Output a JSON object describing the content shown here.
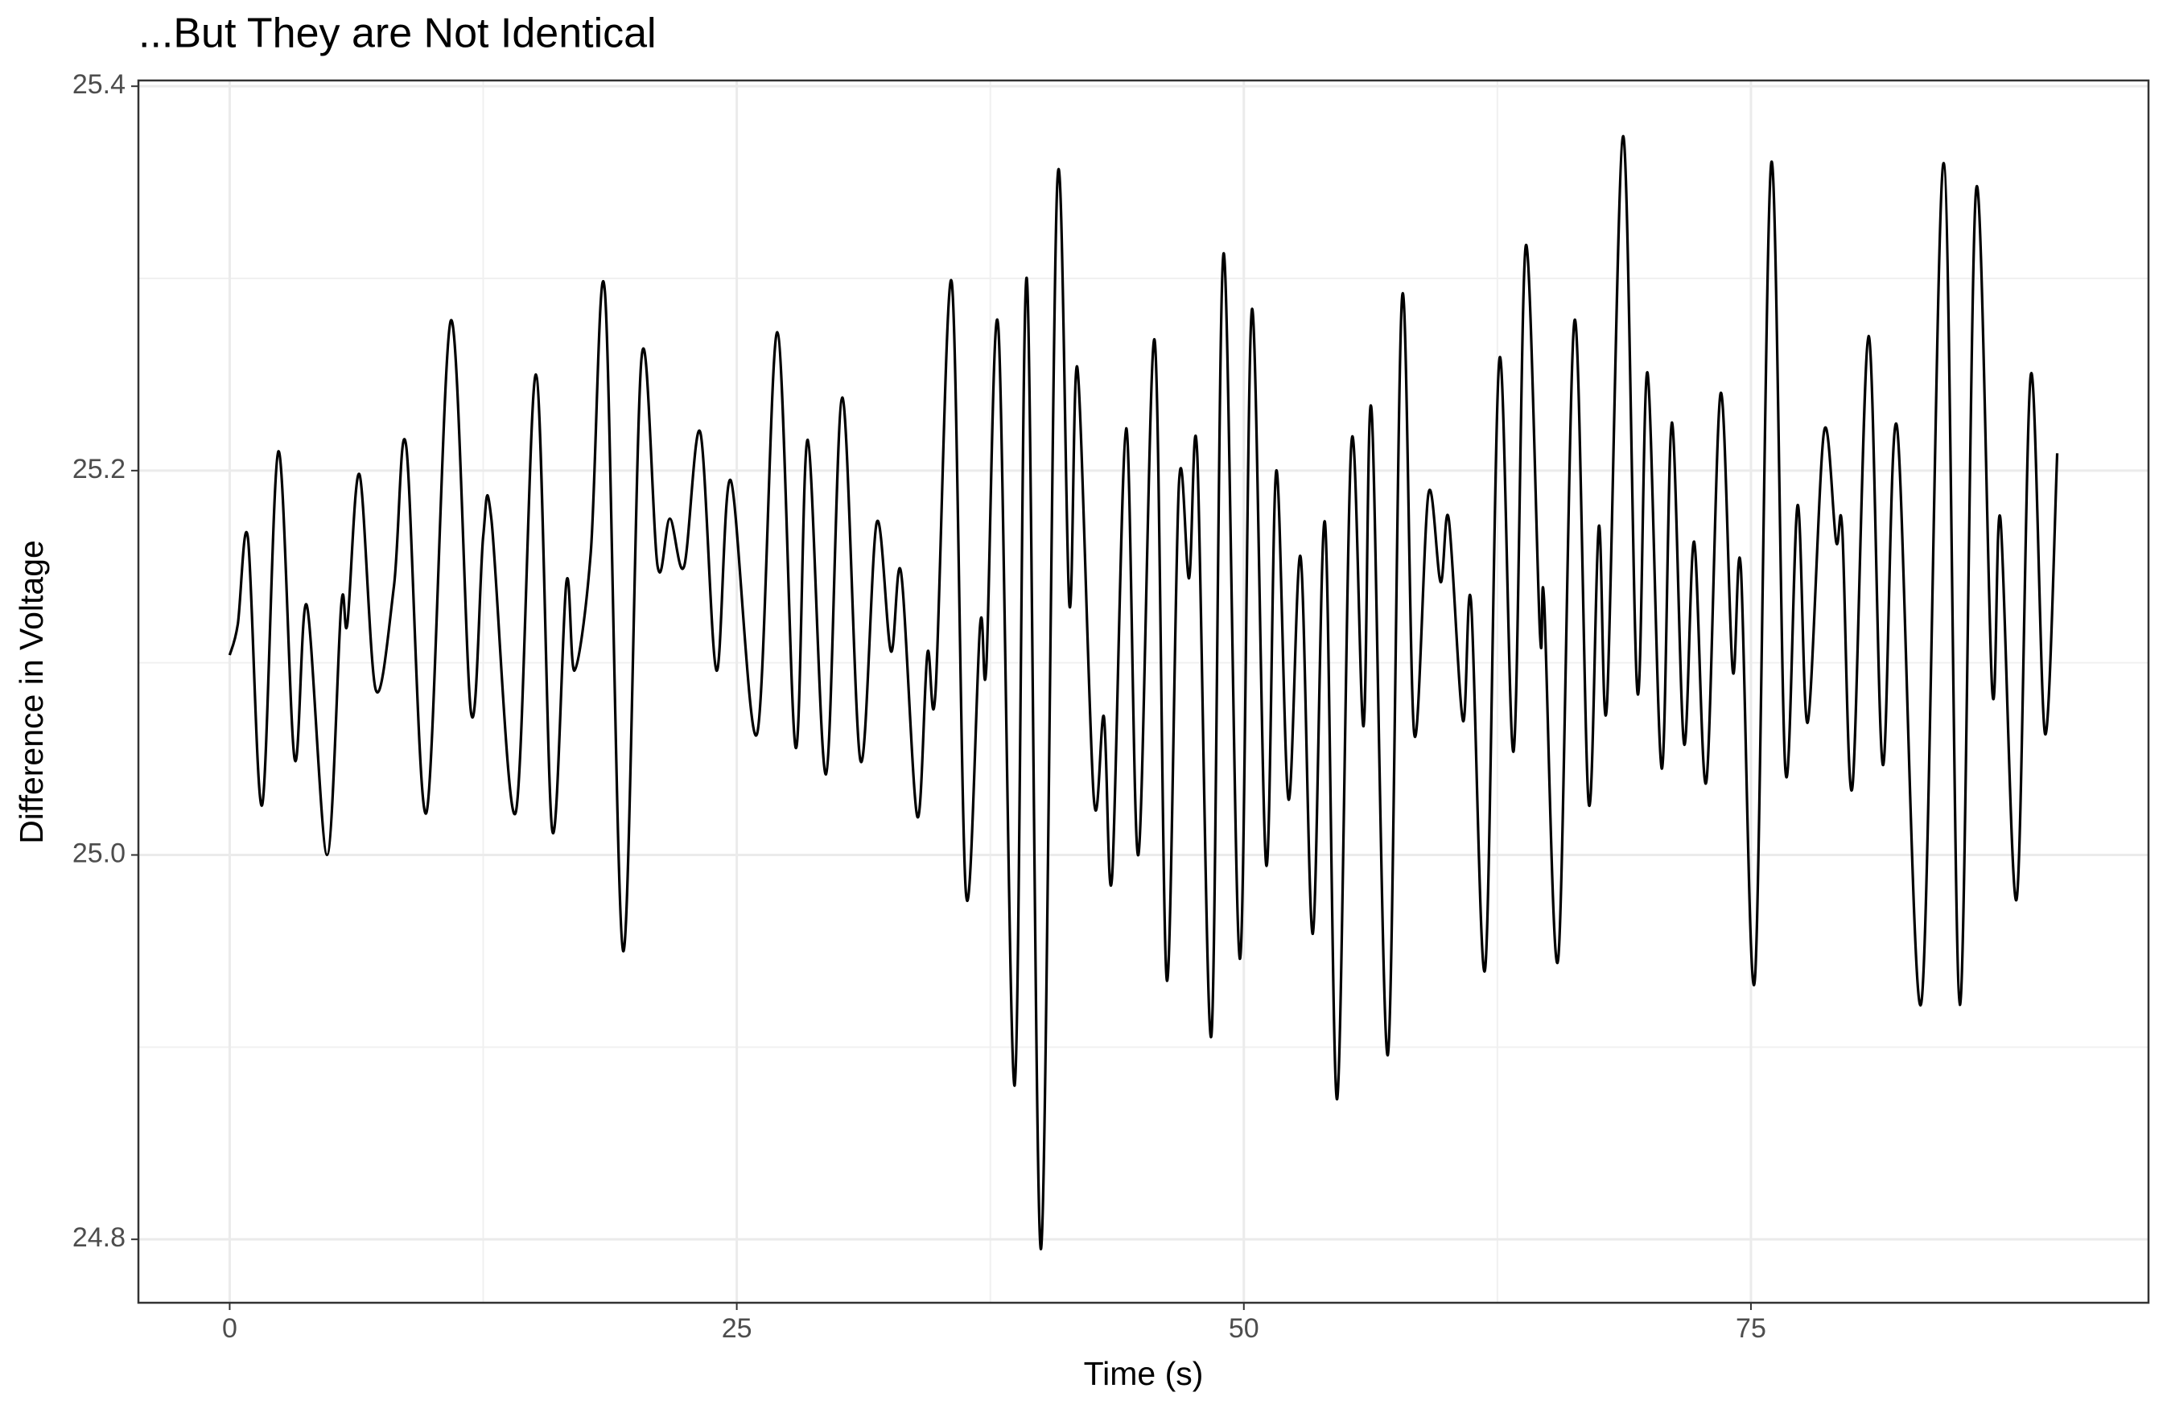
{
  "chart_data": {
    "type": "line",
    "title": "...But They are Not Identical",
    "x_label": "Time (s)",
    "y_label": "Difference in Voltage",
    "xlim": [
      -4.5,
      94.6
    ],
    "ylim": [
      24.767,
      25.403
    ],
    "xticks": [
      0,
      25,
      50,
      75
    ],
    "yticks": [
      24.8,
      {
        "value": 25,
        "label": "25.0"
      },
      25.2,
      25.4
    ],
    "grid": true,
    "color": "#000000",
    "x": [
      0,
      0.4,
      0.9,
      1.6,
      2.4,
      3.2,
      3.8,
      4.8,
      5.5,
      5.8,
      6.4,
      7.2,
      8.1,
      8.7,
      9.7,
      10.9,
      11.9,
      12.5,
      12.9,
      14.1,
      15.1,
      15.9,
      16.6,
      17.0,
      17.8,
      18.5,
      19.4,
      20.3,
      21.1,
      21.7,
      22.4,
      23.2,
      24.0,
      24.7,
      26.0,
      27.0,
      27.9,
      28.5,
      29.4,
      30.2,
      31.1,
      31.9,
      32.6,
      33.1,
      33.9,
      34.4,
      34.8,
      35.6,
      36.3,
      37.0,
      37.3,
      37.9,
      38.7,
      39.3,
      40.0,
      40.8,
      41.4,
      41.8,
      42.6,
      43.1,
      43.5,
      44.2,
      44.8,
      45.6,
      46.2,
      46.8,
      47.3,
      47.7,
      48.4,
      49.0,
      49.8,
      50.4,
      51.1,
      51.6,
      52.2,
      52.8,
      53.4,
      54.0,
      54.6,
      55.3,
      55.9,
      56.3,
      57.1,
      57.8,
      58.4,
      59.1,
      59.7,
      60.1,
      60.8,
      61.2,
      61.9,
      62.6,
      63.3,
      63.9,
      64.6,
      64.8,
      65.5,
      66.3,
      67.0,
      67.5,
      67.9,
      68.7,
      69.4,
      69.9,
      70.6,
      71.1,
      71.7,
      72.2,
      72.8,
      73.5,
      74.1,
      74.5,
      75.2,
      76.0,
      76.7,
      77.3,
      77.8,
      78.6,
      79.2,
      79.5,
      80.0,
      80.8,
      81.5,
      82.2,
      83.4,
      84.5,
      85.3,
      86.1,
      86.9,
      87.3,
      88.1,
      88.8,
      89.5,
      90.1
    ],
    "values": [
      25.104,
      25.12,
      25.165,
      25.026,
      25.21,
      25.05,
      25.13,
      25.0,
      25.13,
      25.12,
      25.198,
      25.086,
      25.14,
      25.213,
      25.022,
      25.278,
      25.074,
      25.166,
      25.175,
      25.022,
      25.25,
      25.013,
      25.142,
      25.096,
      25.157,
      25.293,
      24.95,
      25.258,
      25.15,
      25.175,
      25.15,
      25.22,
      25.096,
      25.195,
      25.063,
      25.272,
      25.056,
      25.216,
      25.042,
      25.238,
      25.049,
      25.173,
      25.106,
      25.147,
      25.02,
      25.105,
      25.085,
      25.298,
      24.98,
      25.12,
      25.097,
      25.274,
      24.88,
      25.3,
      24.795,
      25.349,
      25.13,
      25.253,
      25.03,
      25.072,
      24.988,
      25.222,
      25.0,
      25.268,
      24.935,
      25.193,
      25.144,
      25.209,
      24.906,
      25.313,
      24.946,
      25.284,
      24.995,
      25.2,
      25.029,
      25.155,
      24.959,
      25.173,
      24.873,
      25.214,
      25.067,
      25.231,
      24.896,
      25.29,
      25.063,
      25.188,
      25.142,
      25.175,
      25.07,
      25.132,
      24.941,
      25.258,
      25.054,
      25.317,
      25.115,
      25.133,
      24.946,
      25.278,
      25.027,
      25.171,
      25.078,
      25.374,
      25.085,
      25.251,
      25.045,
      25.225,
      25.058,
      25.163,
      25.038,
      25.24,
      25.096,
      25.15,
      24.936,
      25.36,
      25.044,
      25.182,
      25.069,
      25.22,
      25.163,
      25.17,
      25.035,
      25.27,
      25.047,
      25.223,
      24.923,
      25.36,
      24.922,
      25.346,
      25.085,
      25.175,
      24.977,
      25.25,
      25.063,
      25.209
    ]
  }
}
